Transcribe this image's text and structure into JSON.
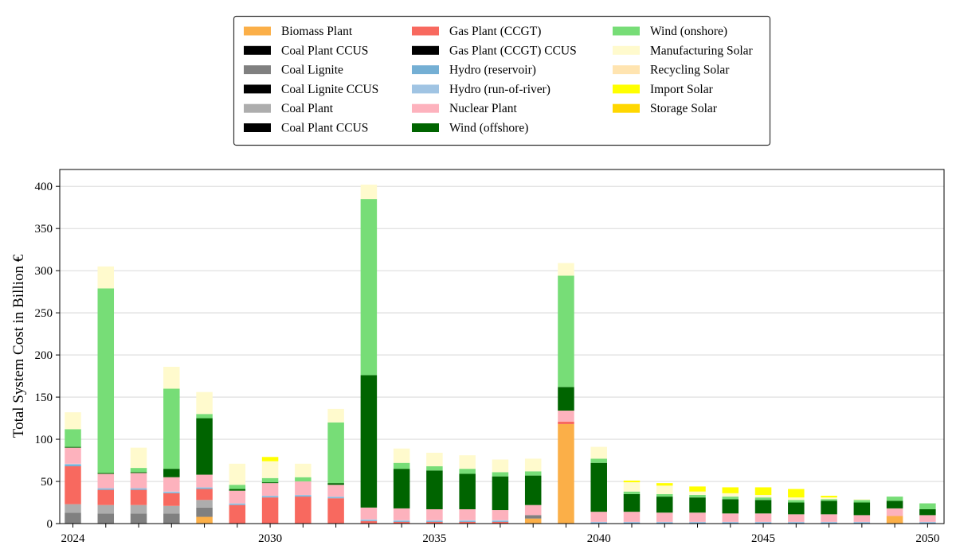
{
  "chart_data": {
    "type": "bar",
    "stacked": true,
    "ylabel": "Total System Cost in Billion €",
    "xlabel": "",
    "ylim": [
      0,
      420
    ],
    "xlim": [
      2023.6,
      2050.5
    ],
    "yticks": [
      0,
      50,
      100,
      150,
      200,
      250,
      300,
      350,
      400
    ],
    "xticks": [
      2024,
      2030,
      2035,
      2040,
      2045,
      2050
    ],
    "grid": "horizontal",
    "legend_position": "top-center",
    "x": [
      2024,
      2025,
      2026,
      2027,
      2028,
      2029,
      2030,
      2031,
      2032,
      2033,
      2034,
      2035,
      2036,
      2037,
      2038,
      2039,
      2040,
      2041,
      2042,
      2043,
      2044,
      2045,
      2046,
      2047,
      2048,
      2049,
      2050
    ],
    "series": [
      {
        "name": "Biomass Plant",
        "color": "#FBAF48",
        "values": [
          0,
          0,
          0,
          0,
          8,
          0,
          0,
          0,
          0,
          0,
          0,
          0,
          0,
          0,
          6,
          118,
          0,
          0,
          0,
          0,
          0,
          0,
          0,
          0,
          0,
          9,
          0
        ]
      },
      {
        "name": "Coal Plant CCUS",
        "color": "#000000",
        "values": [
          0,
          0,
          0,
          0,
          0,
          0,
          0,
          0,
          0,
          0,
          0,
          0,
          0,
          0,
          0,
          0,
          0,
          0,
          0,
          0,
          0,
          0,
          0,
          0,
          0,
          0,
          0
        ]
      },
      {
        "name": "Coal Lignite",
        "color": "#808080",
        "values": [
          13,
          12,
          12,
          12,
          11,
          0,
          0,
          0,
          0,
          0,
          0,
          0,
          0,
          0,
          4,
          0,
          0,
          0,
          0,
          0,
          0,
          0,
          0,
          0,
          0,
          0,
          0
        ]
      },
      {
        "name": "Coal Lignite CCUS",
        "color": "#000000",
        "values": [
          0,
          0,
          0,
          0,
          0,
          0,
          0,
          0,
          0,
          0,
          0,
          0,
          0,
          0,
          0,
          0,
          0,
          0,
          0,
          0,
          0,
          0,
          0,
          0,
          0,
          0,
          0
        ]
      },
      {
        "name": "Coal Plant",
        "color": "#ADADAD",
        "values": [
          10,
          10,
          10,
          9,
          9,
          0,
          0,
          0,
          0,
          0,
          0,
          0,
          0,
          0,
          0,
          0,
          0,
          0,
          0,
          0,
          0,
          0,
          0,
          0,
          0,
          0,
          0
        ]
      },
      {
        "name": "Coal Plant CCUS",
        "color": "#000000",
        "values": [
          0,
          0,
          0,
          0,
          0,
          0,
          0,
          0,
          0,
          0,
          0,
          0,
          0,
          0,
          0,
          0,
          0,
          0,
          0,
          0,
          0,
          0,
          0,
          0,
          0,
          0,
          0
        ]
      },
      {
        "name": "Gas Plant (CCGT)",
        "color": "#F8695F",
        "values": [
          45,
          18,
          18,
          15,
          13,
          22,
          31,
          32,
          30,
          3,
          2,
          2,
          2,
          2,
          0,
          3,
          0,
          0,
          0,
          0,
          0,
          0,
          0,
          0,
          0,
          0,
          0
        ]
      },
      {
        "name": "Gas Plant (CCGT) CCUS",
        "color": "#000000",
        "values": [
          0,
          0,
          0,
          0,
          0,
          0,
          0,
          0,
          0,
          0,
          0,
          0,
          0,
          0,
          0,
          0,
          0,
          0,
          0,
          0,
          0,
          0,
          0,
          0,
          0,
          0,
          0
        ]
      },
      {
        "name": "Hydro (reservoir)",
        "color": "#74AFD4",
        "values": [
          2,
          1,
          1,
          1,
          1,
          1,
          1,
          1,
          1,
          1,
          1,
          1,
          1,
          1,
          0,
          0,
          1,
          1,
          1,
          1,
          1,
          1,
          1,
          1,
          1,
          0,
          1
        ]
      },
      {
        "name": "Hydro (run-of-river)",
        "color": "#A0C4E3",
        "values": [
          1,
          1,
          1,
          1,
          1,
          1,
          1,
          1,
          1,
          1,
          1,
          1,
          1,
          1,
          0,
          0,
          1,
          1,
          1,
          1,
          1,
          1,
          1,
          1,
          1,
          0,
          1
        ]
      },
      {
        "name": "Nuclear Plant",
        "color": "#FDB2BD",
        "values": [
          19,
          17,
          18,
          17,
          15,
          15,
          15,
          16,
          14,
          14,
          14,
          13,
          13,
          12,
          12,
          13,
          12,
          12,
          11,
          11,
          10,
          10,
          9,
          9,
          8,
          9,
          8
        ]
      },
      {
        "name": "Wind (offshore)",
        "color": "#006400",
        "values": [
          1,
          1,
          1,
          10,
          67,
          2,
          1,
          0,
          2,
          157,
          47,
          46,
          42,
          40,
          35,
          28,
          58,
          21,
          19,
          18,
          17,
          16,
          14,
          16,
          15,
          9,
          7
        ]
      },
      {
        "name": "Wind (onshore)",
        "color": "#77DD77",
        "values": [
          21,
          219,
          5,
          95,
          5,
          5,
          5,
          5,
          72,
          209,
          7,
          5,
          6,
          5,
          5,
          132,
          5,
          3,
          3,
          3,
          3,
          3,
          3,
          2,
          3,
          5,
          7
        ]
      },
      {
        "name": "Manufacturing Solar",
        "color": "#FFFACD",
        "values": [
          20,
          26,
          24,
          26,
          26,
          25,
          20,
          16,
          16,
          17,
          17,
          16,
          16,
          15,
          15,
          15,
          14,
          11,
          10,
          4,
          4,
          3,
          3,
          2,
          1,
          0,
          0
        ]
      },
      {
        "name": "Recycling Solar",
        "color": "#FFE4B0",
        "values": [
          0,
          0,
          0,
          0,
          0,
          0,
          0,
          0,
          0,
          0,
          0,
          0,
          0,
          0,
          0,
          0,
          0,
          0,
          0,
          0,
          0,
          0,
          0,
          0,
          0,
          0,
          0
        ]
      },
      {
        "name": "Import Solar",
        "color": "#FFFF00",
        "values": [
          0,
          0,
          0,
          0,
          0,
          0,
          5,
          0,
          0,
          0,
          0,
          0,
          0,
          0,
          0,
          0,
          0,
          2,
          3,
          6,
          7,
          9,
          10,
          2,
          0,
          0,
          0
        ]
      },
      {
        "name": "Storage Solar",
        "color": "#FFD700",
        "values": [
          0,
          0,
          0,
          0,
          0,
          0,
          0,
          0,
          0,
          0,
          0,
          0,
          0,
          0,
          0,
          0,
          0,
          0,
          0,
          0,
          0,
          0,
          0,
          0,
          0,
          0,
          0
        ]
      }
    ]
  }
}
